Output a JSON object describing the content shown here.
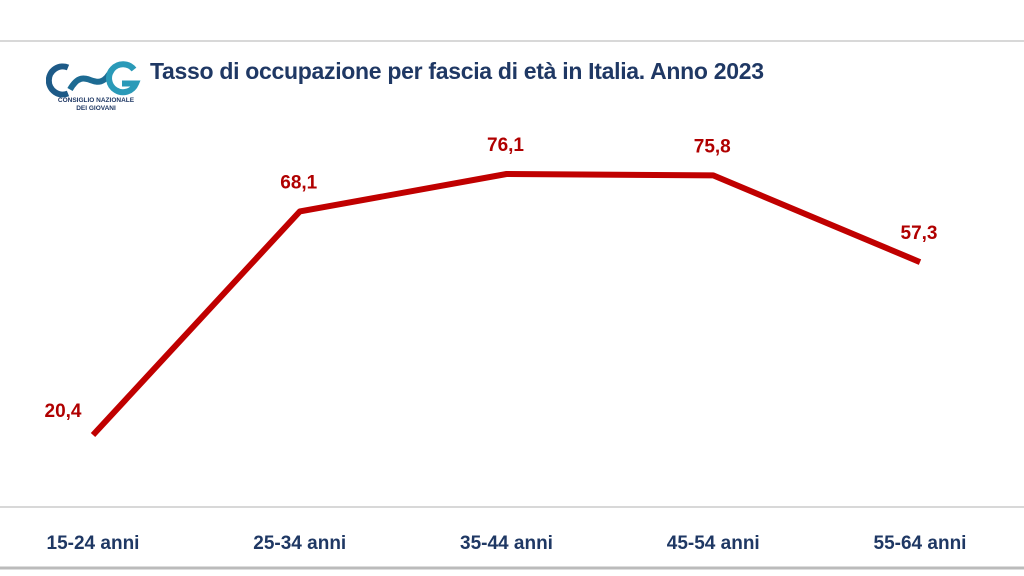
{
  "logo": {
    "text": "CNG",
    "subtitle_line1": "CONSIGLIO NAZIONALE",
    "subtitle_line2": "DEI GIOVANI"
  },
  "chart_data": {
    "type": "line",
    "title": "Tasso di occupazione per fascia di età in Italia. Anno 2023",
    "categories": [
      "15-24 anni",
      "25-34 anni",
      "35-44 anni",
      "45-54 anni",
      "55-64 anni"
    ],
    "values": [
      20.4,
      68.1,
      76.1,
      75.8,
      57.3
    ],
    "labels": [
      "20,4",
      "68,1",
      "76,1",
      "75,8",
      "57,3"
    ],
    "xlabel": "",
    "ylabel": "",
    "grid": false,
    "line_color": "#c00000"
  }
}
